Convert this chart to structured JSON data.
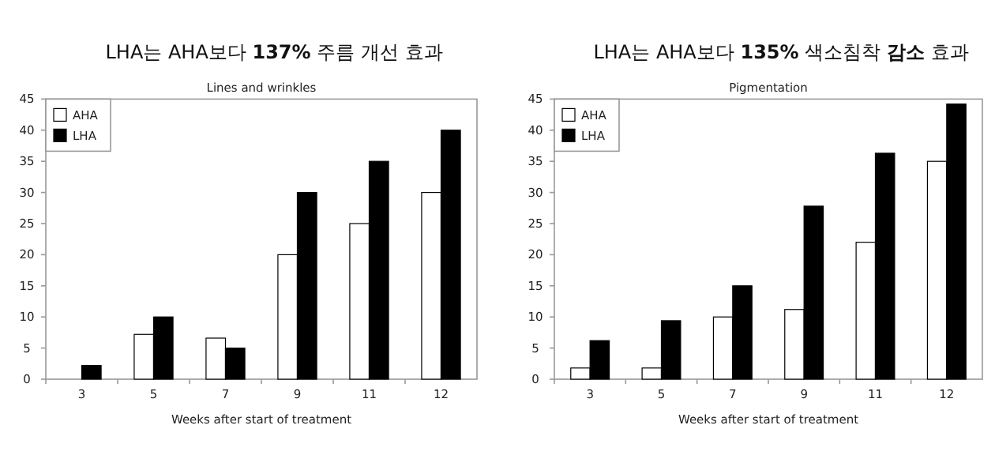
{
  "chart_data": [
    {
      "type": "bar",
      "title": "LHA는 AHA보다 **137%** 주름 개선 효과",
      "subtitle": "Lines and wrinkles",
      "xlabel": "Weeks after start of treatment",
      "categories": [
        "3",
        "5",
        "7",
        "9",
        "11",
        "12"
      ],
      "series": [
        {
          "name": "AHA",
          "color": "#ffffff",
          "values": [
            0,
            7.2,
            6.6,
            20,
            25,
            30
          ]
        },
        {
          "name": "LHA",
          "color": "#000000",
          "values": [
            2.2,
            10,
            5,
            30,
            35,
            40
          ]
        }
      ],
      "ylim": [
        0,
        45
      ],
      "yticks": [
        0,
        5,
        10,
        15,
        20,
        25,
        30,
        35,
        40,
        45
      ],
      "legend": "top left"
    },
    {
      "type": "bar",
      "title": "LHA는 AHA보다 **135%** 색소침착 **감소** 효과",
      "subtitle": "Pigmentation",
      "xlabel": "Weeks after start of treatment",
      "categories": [
        "3",
        "5",
        "7",
        "9",
        "11",
        "12"
      ],
      "series": [
        {
          "name": "AHA",
          "color": "#ffffff",
          "values": [
            1.8,
            1.8,
            10,
            11.2,
            22,
            35
          ]
        },
        {
          "name": "LHA",
          "color": "#000000",
          "values": [
            6.2,
            9.4,
            15,
            27.8,
            36.3,
            44.2
          ]
        }
      ],
      "ylim": [
        0,
        45
      ],
      "yticks": [
        0,
        5,
        10,
        15,
        20,
        25,
        30,
        35,
        40,
        45
      ],
      "legend": "top left"
    }
  ]
}
